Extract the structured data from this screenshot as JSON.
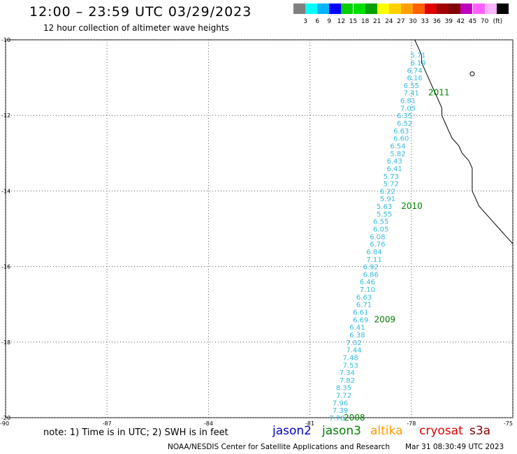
{
  "header": {
    "title": "12:00 – 23:59 UTC 03/29/2023",
    "subtitle": "12 hour collection of altimeter wave heights"
  },
  "colorbar": {
    "colors": [
      "#808080",
      "#00ffff",
      "#00b4ff",
      "#0000ff",
      "#00d000",
      "#00e000",
      "#00a000",
      "#ffff00",
      "#ffd000",
      "#ffa000",
      "#ff6000",
      "#e00000",
      "#a00000",
      "#800000",
      "#c000c0",
      "#ff60ff",
      "#ffb4ff",
      "#000000"
    ],
    "labels": [
      "3",
      "6",
      "9",
      "12",
      "15",
      "18",
      "21",
      "24",
      "27",
      "30",
      "33",
      "36",
      "39",
      "42",
      "45",
      "70"
    ],
    "unit": "(ft)"
  },
  "axes": {
    "lat_labels": [
      "-10",
      "-12",
      "-14",
      "-16",
      "-18",
      "-20"
    ],
    "lon_labels": [
      "-90",
      "-87",
      "-84",
      "-81",
      "-78",
      "-75"
    ]
  },
  "chart_data": {
    "type": "scatter",
    "lon_range": [
      -90,
      -75
    ],
    "lat_range": [
      -20,
      -10
    ],
    "grid": true,
    "track_color": "#33bbdd",
    "track": [
      {
        "lon": -77.8,
        "lat": -10.4,
        "swh": "5.71"
      },
      {
        "lon": -77.8,
        "lat": -10.6,
        "swh": "6.19"
      },
      {
        "lon": -77.9,
        "lat": -10.8,
        "swh": "6.74"
      },
      {
        "lon": -77.9,
        "lat": -11.0,
        "swh": "6.16"
      },
      {
        "lon": -78.0,
        "lat": -11.2,
        "swh": "6.55"
      },
      {
        "lon": -78.0,
        "lat": -11.4,
        "swh": "7.41"
      },
      {
        "lon": -78.1,
        "lat": -11.6,
        "swh": "6.81"
      },
      {
        "lon": -78.1,
        "lat": -11.8,
        "swh": "7.05"
      },
      {
        "lon": -78.2,
        "lat": -12.0,
        "swh": "6.35"
      },
      {
        "lon": -78.2,
        "lat": -12.2,
        "swh": "6.52"
      },
      {
        "lon": -78.3,
        "lat": -12.4,
        "swh": "6.63"
      },
      {
        "lon": -78.3,
        "lat": -12.6,
        "swh": "6.60"
      },
      {
        "lon": -78.4,
        "lat": -12.8,
        "swh": "6.54"
      },
      {
        "lon": -78.4,
        "lat": -13.0,
        "swh": "5.82"
      },
      {
        "lon": -78.5,
        "lat": -13.2,
        "swh": "6.43"
      },
      {
        "lon": -78.5,
        "lat": -13.4,
        "swh": "6.41"
      },
      {
        "lon": -78.6,
        "lat": -13.6,
        "swh": "5.73"
      },
      {
        "lon": -78.6,
        "lat": -13.8,
        "swh": "5.72"
      },
      {
        "lon": -78.7,
        "lat": -14.0,
        "swh": "6.22"
      },
      {
        "lon": -78.7,
        "lat": -14.2,
        "swh": "5.91"
      },
      {
        "lon": -78.8,
        "lat": -14.4,
        "swh": "5.63"
      },
      {
        "lon": -78.8,
        "lat": -14.6,
        "swh": "5.55"
      },
      {
        "lon": -78.9,
        "lat": -14.8,
        "swh": "6.55"
      },
      {
        "lon": -78.9,
        "lat": -15.0,
        "swh": "6.05"
      },
      {
        "lon": -79.0,
        "lat": -15.2,
        "swh": "6.08"
      },
      {
        "lon": -79.0,
        "lat": -15.4,
        "swh": "6.76"
      },
      {
        "lon": -79.1,
        "lat": -15.6,
        "swh": "6.84"
      },
      {
        "lon": -79.1,
        "lat": -15.8,
        "swh": "7.11"
      },
      {
        "lon": -79.2,
        "lat": -16.0,
        "swh": "6.92"
      },
      {
        "lon": -79.2,
        "lat": -16.2,
        "swh": "6.86"
      },
      {
        "lon": -79.3,
        "lat": -16.4,
        "swh": "6.46"
      },
      {
        "lon": -79.3,
        "lat": -16.6,
        "swh": "7.10"
      },
      {
        "lon": -79.4,
        "lat": -16.8,
        "swh": "6.63"
      },
      {
        "lon": -79.4,
        "lat": -17.0,
        "swh": "6.71"
      },
      {
        "lon": -79.5,
        "lat": -17.2,
        "swh": "6.61"
      },
      {
        "lon": -79.5,
        "lat": -17.4,
        "swh": "6.69"
      },
      {
        "lon": -79.6,
        "lat": -17.6,
        "swh": "6.41"
      },
      {
        "lon": -79.6,
        "lat": -17.8,
        "swh": "6.38"
      },
      {
        "lon": -79.7,
        "lat": -18.0,
        "swh": "7.02"
      },
      {
        "lon": -79.7,
        "lat": -18.2,
        "swh": "7.44"
      },
      {
        "lon": -79.8,
        "lat": -18.4,
        "swh": "7.48"
      },
      {
        "lon": -79.8,
        "lat": -18.6,
        "swh": "7.53"
      },
      {
        "lon": -79.9,
        "lat": -18.8,
        "swh": "7.34"
      },
      {
        "lon": -79.9,
        "lat": -19.0,
        "swh": "7.82"
      },
      {
        "lon": -80.0,
        "lat": -19.2,
        "swh": "8.35"
      },
      {
        "lon": -80.0,
        "lat": -19.4,
        "swh": "7.72"
      },
      {
        "lon": -80.1,
        "lat": -19.6,
        "swh": "7.96"
      },
      {
        "lon": -80.1,
        "lat": -19.8,
        "swh": "7.39"
      },
      {
        "lon": -80.2,
        "lat": -20.0,
        "swh": "7.78"
      }
    ],
    "time_labels": [
      {
        "text": "2011",
        "lon": -77.5,
        "lat": -11.4
      },
      {
        "text": "2010",
        "lon": -78.3,
        "lat": -14.4
      },
      {
        "text": "2009",
        "lon": -79.1,
        "lat": -17.4
      },
      {
        "text": "2008",
        "lon": -80.0,
        "lat": -20.0
      }
    ],
    "time_label_color": "#008000",
    "coastline": [
      [
        -77.9,
        -10.0
      ],
      [
        -77.8,
        -10.2
      ],
      [
        -77.7,
        -10.4
      ],
      [
        -77.7,
        -10.6
      ],
      [
        -77.6,
        -10.8
      ],
      [
        -77.5,
        -11.0
      ],
      [
        -77.4,
        -11.2
      ],
      [
        -77.3,
        -11.4
      ],
      [
        -77.2,
        -11.6
      ],
      [
        -77.1,
        -11.8
      ],
      [
        -77.1,
        -12.0
      ],
      [
        -77.0,
        -12.2
      ],
      [
        -76.9,
        -12.4
      ],
      [
        -76.8,
        -12.6
      ],
      [
        -76.6,
        -12.8
      ],
      [
        -76.5,
        -13.0
      ],
      [
        -76.3,
        -13.2
      ],
      [
        -76.2,
        -13.4
      ],
      [
        -76.2,
        -13.6
      ],
      [
        -76.2,
        -13.8
      ],
      [
        -76.2,
        -14.0
      ],
      [
        -76.1,
        -14.2
      ],
      [
        -76.0,
        -14.4
      ],
      [
        -75.8,
        -14.6
      ],
      [
        -75.6,
        -14.8
      ],
      [
        -75.4,
        -15.0
      ],
      [
        -75.2,
        -15.2
      ],
      [
        -75.0,
        -15.4
      ]
    ],
    "islands": [
      [
        -76.2,
        -10.9
      ]
    ]
  },
  "legend": {
    "note": "note: 1) Time is in UTC; 2) SWH is in feet",
    "satellites": [
      {
        "name": "jason2",
        "color": "#0000cc"
      },
      {
        "name": "jason3",
        "color": "#008000"
      },
      {
        "name": "altika",
        "color": "#ff9900"
      },
      {
        "name": "cryosat",
        "color": "#dd0000"
      },
      {
        "name": "s3a",
        "color": "#800000"
      }
    ]
  },
  "footer": {
    "credit": "NOAA/NESDIS Center for Satellite Applications and Research",
    "timestamp": "Mar 31 08:30:49 UTC 2023"
  }
}
